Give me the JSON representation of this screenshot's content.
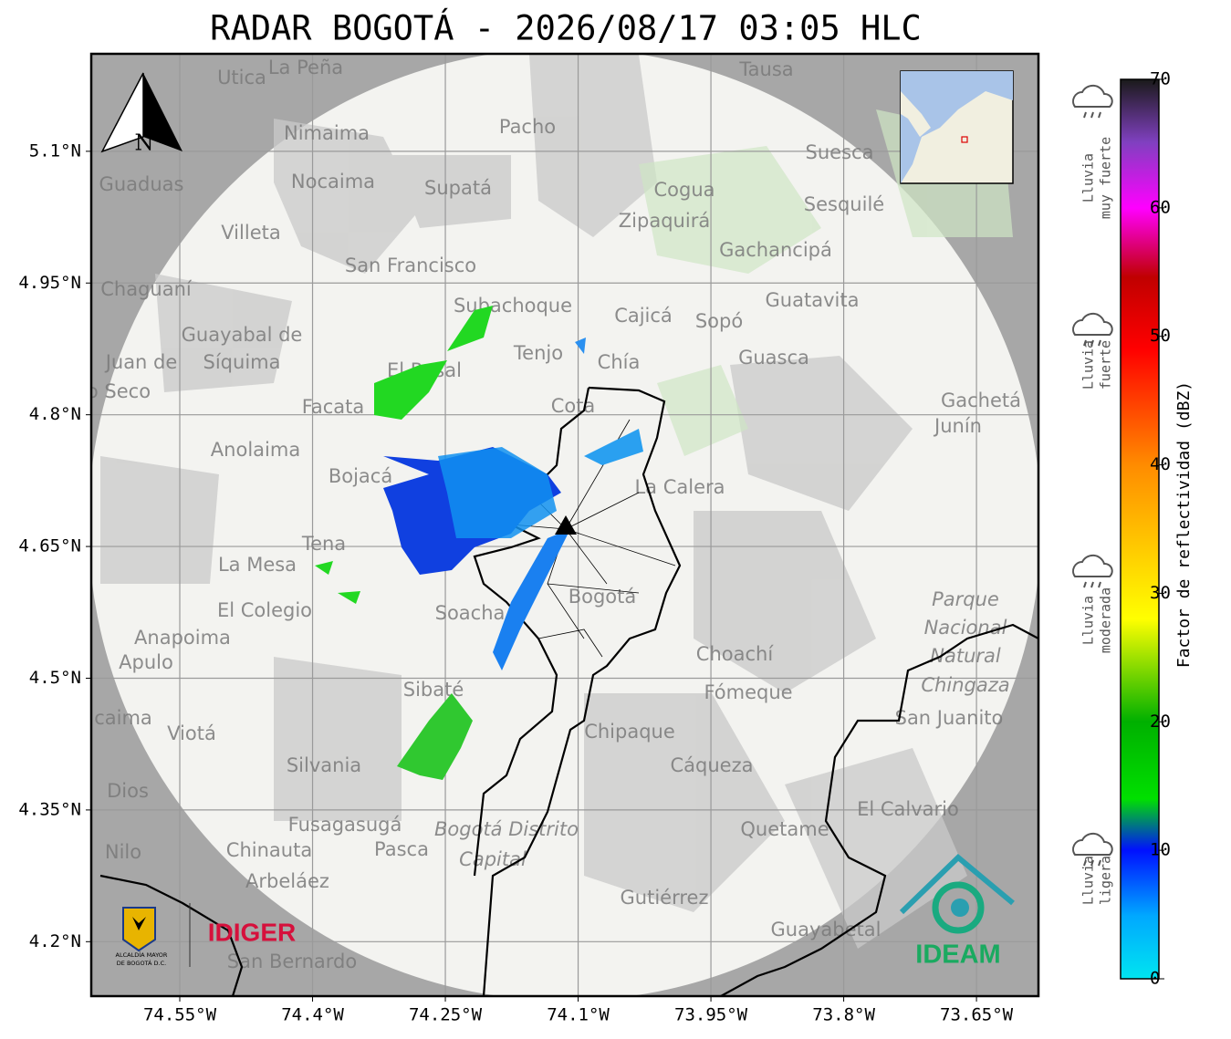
{
  "title": "RADAR BOGOTÁ - 2026/08/17 03:05 HLC",
  "map": {
    "xlim": [
      -74.65,
      -73.58
    ],
    "ylim": [
      4.138,
      5.211
    ],
    "xticks": [
      {
        "value": -74.55,
        "label": "74.55°W"
      },
      {
        "value": -74.4,
        "label": "74.4°W"
      },
      {
        "value": -74.25,
        "label": "74.25°W"
      },
      {
        "value": -74.1,
        "label": "74.1°W"
      },
      {
        "value": -73.95,
        "label": "73.95°W"
      },
      {
        "value": -73.8,
        "label": "73.8°W"
      },
      {
        "value": -73.65,
        "label": "73.65°W"
      }
    ],
    "yticks": [
      {
        "value": 5.1,
        "label": "5.1°N"
      },
      {
        "value": 4.95,
        "label": "4.95°N"
      },
      {
        "value": 4.8,
        "label": "4.8°N"
      },
      {
        "value": 4.65,
        "label": "4.65°N"
      },
      {
        "value": 4.5,
        "label": "4.5°N"
      },
      {
        "value": 4.35,
        "label": "4.35°N"
      },
      {
        "value": 4.2,
        "label": "4.2°N"
      }
    ],
    "north_label": "N",
    "places": [
      "La Peña",
      "Utica",
      "Tausa",
      "Pacho",
      "Nimaima",
      "Guaduas",
      "Nocaima",
      "Supatá",
      "Suesca",
      "Cogua",
      "Sesquilé",
      "Zipaquirá",
      "Villeta",
      "Gachancipá",
      "San Francisco",
      "Chaguaní",
      "Subachoque",
      "Guatavita",
      "Cajicá",
      "Sopó",
      "Guayabal de",
      "Síquima",
      "Tenjo",
      "Chía",
      "Guasca",
      "Juan de",
      "o Seco",
      "El Rosal",
      "Facata",
      "Cota",
      "Gachetá",
      "Junín",
      "Anolaima",
      "Bojacá",
      "La Calera",
      "Tena",
      "La Mesa",
      "Bogotá",
      "Parque",
      "Nacional",
      "Natural",
      "Chingaza",
      "El Colegio",
      "Soacha",
      "Anapoima",
      "Apulo",
      "Choachí",
      "Sibaté",
      "Fómeque",
      "San Juanito",
      "caima",
      "Viotá",
      "Chipaque",
      "Silvania",
      "Cáqueza",
      "Dios",
      "El Calvario",
      "Fusagasugá",
      "Bogotá Distrito",
      "Capital",
      "Quetame",
      "Nilo",
      "Chinauta",
      "Pasca",
      "Gutiérrez",
      "Arbeláez",
      "Guayabetal",
      "San Bernardo"
    ]
  },
  "colorbar": {
    "label": "Factor de reflectividad (dBZ)",
    "lim": [
      0,
      70
    ],
    "ticks": [
      0,
      10,
      20,
      30,
      40,
      50,
      60,
      70
    ],
    "categories": [
      [
        "Lluvia",
        "muy fuerte"
      ],
      [
        "Lluvia",
        "fuerte"
      ],
      [
        "Lluvia",
        "moderada"
      ],
      [
        "Lluvia",
        "ligera"
      ]
    ]
  },
  "logos": {
    "alcaldia": [
      "ALCALDÍA MAYOR",
      "DE BOGOTÁ D.C."
    ],
    "idiger": "IDIGER",
    "ideam": "IDEAM"
  }
}
